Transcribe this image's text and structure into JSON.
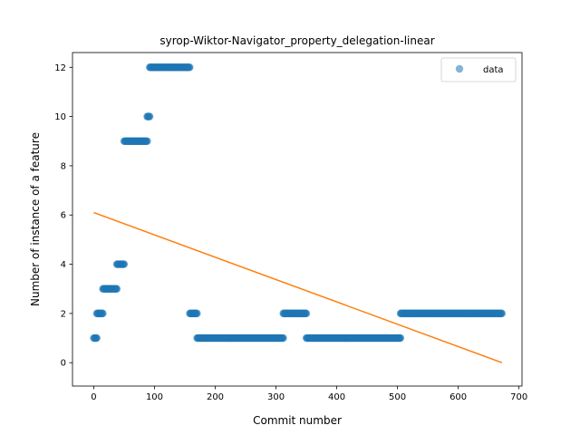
{
  "chart_data": {
    "type": "scatter",
    "title": "syrop-Wiktor-Navigator_property_delegation-linear",
    "xlabel": "Commit number",
    "ylabel": "Number of instance of a feature",
    "xlim": [
      -35,
      705
    ],
    "ylim": [
      -0.95,
      12.6
    ],
    "xticks": [
      0,
      100,
      200,
      300,
      400,
      500,
      600,
      700
    ],
    "yticks": [
      0,
      2,
      4,
      6,
      8,
      10,
      12
    ],
    "grid": false,
    "legend": {
      "position": "top-right",
      "entries": [
        "data"
      ]
    },
    "colors": {
      "data": "#1f77b4",
      "fit": "#ff7f0e"
    },
    "series": [
      {
        "name": "data",
        "kind": "scatter",
        "segments": [
          {
            "x_start": 0,
            "x_end": 5,
            "y": 1
          },
          {
            "x_start": 5,
            "x_end": 15,
            "y": 2
          },
          {
            "x_start": 15,
            "x_end": 38,
            "y": 3
          },
          {
            "x_start": 38,
            "x_end": 50,
            "y": 4
          },
          {
            "x_start": 50,
            "x_end": 88,
            "y": 9
          },
          {
            "x_start": 88,
            "x_end": 92,
            "y": 10
          },
          {
            "x_start": 92,
            "x_end": 158,
            "y": 12
          },
          {
            "x_start": 158,
            "x_end": 170,
            "y": 2
          },
          {
            "x_start": 170,
            "x_end": 312,
            "y": 1
          },
          {
            "x_start": 312,
            "x_end": 350,
            "y": 2
          },
          {
            "x_start": 350,
            "x_end": 505,
            "y": 1
          },
          {
            "x_start": 505,
            "x_end": 672,
            "y": 2
          }
        ]
      },
      {
        "name": "fit",
        "kind": "line",
        "x": [
          0,
          672
        ],
        "y": [
          6.1,
          0.0
        ]
      }
    ]
  }
}
